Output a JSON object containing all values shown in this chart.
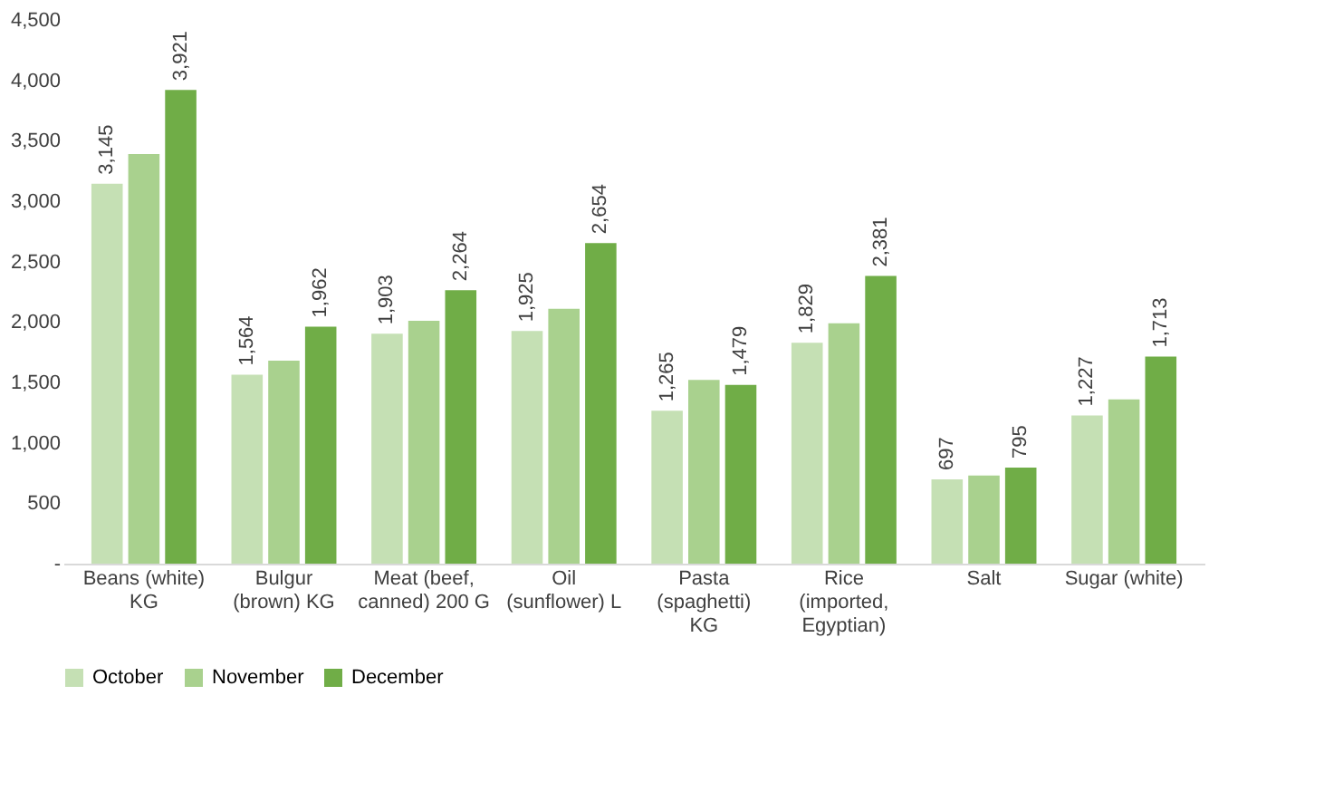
{
  "chart_data": {
    "type": "bar",
    "categories": [
      "Beans (white) KG",
      "Bulgur (brown) KG",
      "Meat (beef, canned) 200 G",
      "Oil (sunflower) L",
      "Pasta (spaghetti) KG",
      "Rice (imported, Egyptian)",
      "Salt",
      "Sugar (white)"
    ],
    "series": [
      {
        "name": "October",
        "color": "#c5e0b4",
        "values": [
          3145,
          1564,
          1903,
          1925,
          1265,
          1829,
          697,
          1227
        ],
        "value_labels": [
          "3,145",
          "1,564",
          "1,903",
          "1,925",
          "1,265",
          "1,829",
          "697",
          "1,227"
        ]
      },
      {
        "name": "November",
        "color": "#a9d18e",
        "values": [
          3390,
          1680,
          2010,
          2110,
          1520,
          1990,
          730,
          1360
        ]
      },
      {
        "name": "December",
        "color": "#70ad47",
        "values": [
          3921,
          1962,
          2264,
          2654,
          1479,
          2381,
          795,
          1713
        ],
        "value_labels": [
          "3,921",
          "1,962",
          "2,264",
          "2,654",
          "1,479",
          "2,381",
          "795",
          "1,713"
        ]
      }
    ],
    "ylim": [
      0,
      4500
    ],
    "yticks": [
      {
        "value": 0,
        "label": "-"
      },
      {
        "value": 500,
        "label": "500"
      },
      {
        "value": 1000,
        "label": "1,000"
      },
      {
        "value": 1500,
        "label": "1,500"
      },
      {
        "value": 2000,
        "label": "2,000"
      },
      {
        "value": 2500,
        "label": "2,500"
      },
      {
        "value": 3000,
        "label": "3,000"
      },
      {
        "value": 3500,
        "label": "3,500"
      },
      {
        "value": 4000,
        "label": "4,000"
      },
      {
        "value": 4500,
        "label": "4,500"
      }
    ],
    "grid": false,
    "legend": "bottom"
  }
}
